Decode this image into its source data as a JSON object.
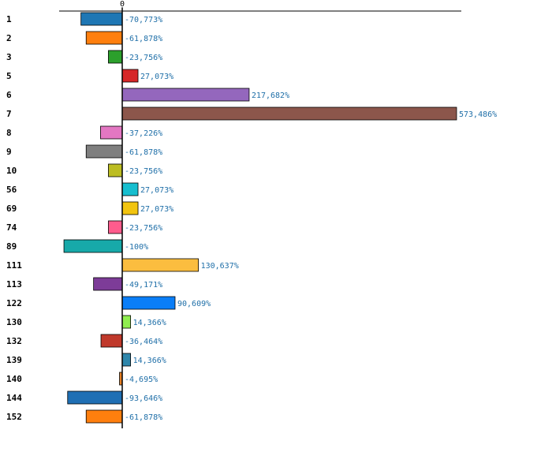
{
  "chart_data": {
    "type": "bar",
    "orientation": "horizontal",
    "title": "",
    "xlabel": "",
    "ylabel": "",
    "x_tick_labels": [
      "0"
    ],
    "xlim": [
      -100,
      573.486
    ],
    "grid": false,
    "legend": "none",
    "categories": [
      "1",
      "2",
      "3",
      "5",
      "6",
      "7",
      "8",
      "9",
      "10",
      "56",
      "69",
      "74",
      "89",
      "111",
      "113",
      "122",
      "130",
      "132",
      "139",
      "140",
      "144",
      "152"
    ],
    "values": [
      -70.773,
      -61.878,
      -23.756,
      27.073,
      217.682,
      573.486,
      -37.226,
      -61.878,
      -23.756,
      27.073,
      27.073,
      -23.756,
      -100,
      130.637,
      -49.171,
      90.609,
      14.366,
      -36.464,
      14.366,
      -4.695,
      -93.646,
      -61.878
    ],
    "value_labels": [
      "-70,773%",
      "-61,878%",
      "-23,756%",
      "27,073%",
      "217,682%",
      "573,486%",
      "-37,226%",
      "-61,878%",
      "-23,756%",
      "27,073%",
      "27,073%",
      "-23,756%",
      "-100%",
      "130,637%",
      "-49,171%",
      "90,609%",
      "14,366%",
      "-36,464%",
      "14,366%",
      "-4,695%",
      "-93,646%",
      "-61,878%"
    ],
    "colors": [
      "#1f77b4",
      "#ff7f0e",
      "#2ca02c",
      "#d62728",
      "#9467bd",
      "#8c564b",
      "#e377c2",
      "#7f7f7f",
      "#bcbd22",
      "#17becf",
      "#f2c40f",
      "#ff5c8d",
      "#17a9a9",
      "#fbbd3f",
      "#7d3c98",
      "#0a7ef7",
      "#90ee50",
      "#c0392b",
      "#2e86ab",
      "#e67e22",
      "#1f6fb4",
      "#ff7f0e"
    ],
    "value_label_color": "#1f6fa8"
  }
}
